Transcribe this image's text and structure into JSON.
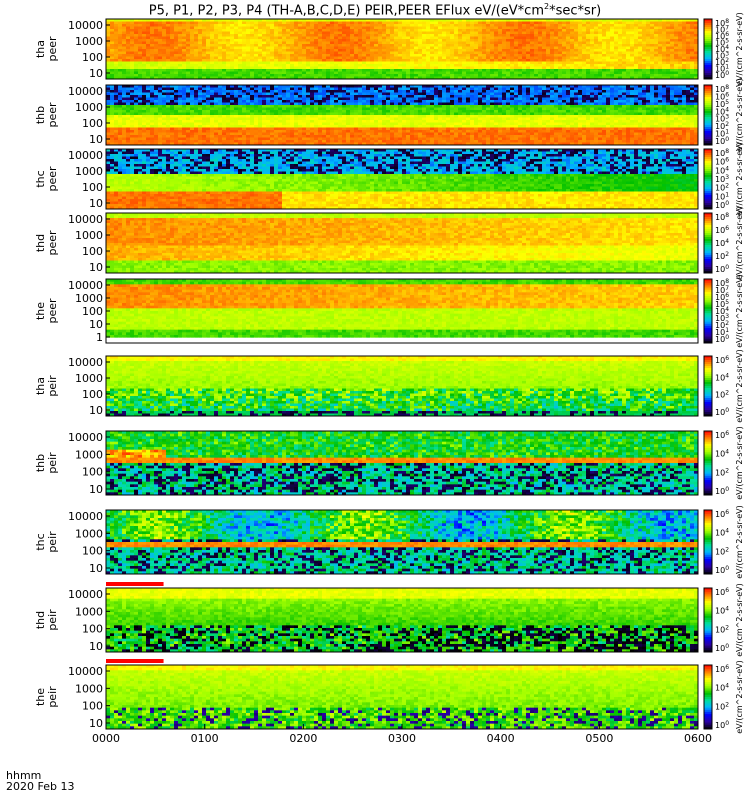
{
  "chart_data": {
    "type": "heatmap",
    "title_parts": [
      "P5, P1, P2, P3, P4 (TH-A,B,C,D,E) PEIR,PEER EFlux eV/(eV*cm",
      "2",
      "*sec*sr)"
    ],
    "x_axis": {
      "ticks": [
        "0000",
        "0100",
        "0200",
        "0300",
        "0400",
        "0500",
        "0600"
      ],
      "label_line1": "hhmm",
      "label_line2": "2020 Feb 13",
      "range_minutes": [
        0,
        360
      ]
    },
    "y_scale": "log",
    "panels": [
      {
        "id": "tha_peer",
        "label": [
          "tha",
          "peer"
        ],
        "y_ticks": [
          "10000",
          "1000",
          "100",
          "10"
        ],
        "colorbar_ticks": [
          "10^8",
          "10^7",
          "10^6",
          "10^5",
          "10^4",
          "10^3",
          "10^2",
          "10^1",
          "10^0"
        ],
        "colorbar_unit": "eV/(cm^2-s-sr-eV)",
        "profile": "electron_broad",
        "has_marker": false
      },
      {
        "id": "thb_peer",
        "label": [
          "thb",
          "peer"
        ],
        "y_ticks": [
          "10000",
          "1000",
          "100",
          "10"
        ],
        "colorbar_ticks": [
          "10^8",
          "10^6",
          "10^5",
          "10^4",
          "10^3",
          "10^2",
          "10^1",
          "10^0"
        ],
        "colorbar_unit": "eV/(cm^2-s-sr-eV)",
        "profile": "electron_low",
        "has_marker": false
      },
      {
        "id": "thc_peer",
        "label": [
          "thc",
          "peer"
        ],
        "y_ticks": [
          "10000",
          "1000",
          "100",
          "10"
        ],
        "colorbar_ticks": [
          "10^8",
          "10^6",
          "10^4",
          "10^3",
          "10^2",
          "10^1",
          "10^0"
        ],
        "colorbar_unit": "eV/(cm^2-s-sr-eV)",
        "profile": "electron_sparse",
        "has_marker": false
      },
      {
        "id": "thd_peer",
        "label": [
          "thd",
          "peer"
        ],
        "y_ticks": [
          "10000",
          "1000",
          "100",
          "10"
        ],
        "colorbar_ticks": [
          "10^8",
          "10^6",
          "10^4",
          "10^2",
          "10^0"
        ],
        "colorbar_unit": "eV/(cm^2-s-sr-eV)",
        "profile": "electron_broad2",
        "has_marker": false
      },
      {
        "id": "the_peer",
        "label": [
          "the",
          "peer"
        ],
        "y_ticks": [
          "10000",
          "1000",
          "100",
          "10",
          "1"
        ],
        "colorbar_ticks": [
          "10^8",
          "10^7",
          "10^6",
          "10^5",
          "10^4",
          "10^3",
          "10^2",
          "10^1",
          "10^0"
        ],
        "colorbar_unit": "eV/(cm^2-s-sr-eV)",
        "profile": "electron_the",
        "has_marker": false
      },
      {
        "id": "tha_peir",
        "label": [
          "tha",
          "peir"
        ],
        "y_ticks": [
          "10000",
          "1000",
          "100",
          "10"
        ],
        "colorbar_ticks": [
          "10^6",
          "10^4",
          "10^2",
          "10^0"
        ],
        "colorbar_unit": "eV/(cm^2-s-sr-eV)",
        "profile": "ion_yellow",
        "has_marker": false
      },
      {
        "id": "thb_peir",
        "label": [
          "thb",
          "peir"
        ],
        "y_ticks": [
          "10000",
          "1000",
          "100",
          "10"
        ],
        "colorbar_ticks": [
          "10^6",
          "10^4",
          "10^2",
          "10^0"
        ],
        "colorbar_unit": "eV/(cm^2-s-sr-eV)",
        "profile": "ion_band",
        "has_marker": false
      },
      {
        "id": "thc_peir",
        "label": [
          "thc",
          "peir"
        ],
        "y_ticks": [
          "10000",
          "1000",
          "100",
          "10"
        ],
        "colorbar_ticks": [
          "10^6",
          "10^4",
          "10^2",
          "10^0"
        ],
        "colorbar_unit": "eV/(cm^2-s-sr-eV)",
        "profile": "ion_band2",
        "has_marker": false
      },
      {
        "id": "thd_peir",
        "label": [
          "thd",
          "peir"
        ],
        "y_ticks": [
          "10000",
          "1000",
          "100",
          "10"
        ],
        "colorbar_ticks": [
          "10^6",
          "10^4",
          "10^2",
          "10^0"
        ],
        "colorbar_unit": "eV/(cm^2-s-sr-eV)",
        "profile": "ion_green",
        "has_marker": true
      },
      {
        "id": "the_peir",
        "label": [
          "the",
          "peir"
        ],
        "y_ticks": [
          "10000",
          "1000",
          "100",
          "10"
        ],
        "colorbar_ticks": [
          "10^6",
          "10^4",
          "10^2",
          "10^0"
        ],
        "colorbar_unit": "eV/(cm^2-s-sr-eV)",
        "profile": "ion_yellow2",
        "has_marker": true
      }
    ],
    "marker_interval_minutes": [
      0,
      35
    ],
    "colormap": [
      "#000000",
      "#2b00a0",
      "#0000ff",
      "#00b4ff",
      "#00e0a0",
      "#00c000",
      "#a0ff00",
      "#ffff00",
      "#ff8000",
      "#ff0000"
    ]
  }
}
